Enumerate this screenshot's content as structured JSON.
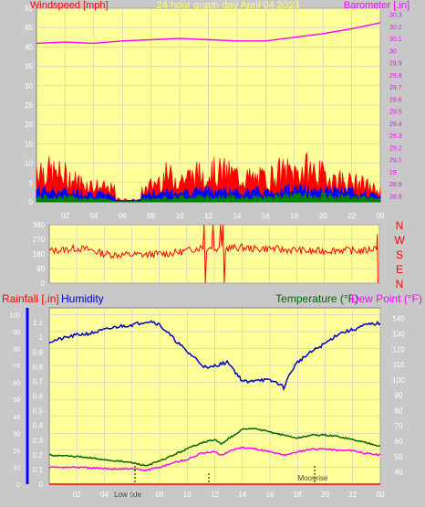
{
  "header": {
    "left_label": "Windspeed [mph]",
    "center_label": "24 hour graph day  April 04 2023",
    "right_label": "Barometer [.in]"
  },
  "bottom_header": {
    "rainfall_label": "Rainfall [.in]",
    "humidity_label": "Humidity",
    "temperature_label": "Temperature (°F)",
    "dewpoint_label": "Dew Point (°F)"
  },
  "footer_labels": [
    "Low tide",
    "Moonrise"
  ],
  "colors": {
    "background": "#c8c8c8",
    "plot_bg": "#ffff99",
    "wind": "#ff0000",
    "gust": "#0000ff",
    "avg_wind": "#008000",
    "barometer": "#ff00ff",
    "humidity": "#0000cc",
    "temperature": "#006600",
    "dewpoint": "#ff00ff",
    "rain": "#ff0000"
  },
  "chart_data": [
    {
      "type": "line",
      "name": "wind_and_barometer",
      "title": "24 hour graph day  April 04 2023",
      "xlabel": "",
      "x_ticks": [
        "02",
        "04",
        "06",
        "08",
        "10",
        "12",
        "14",
        "16",
        "18",
        "20",
        "22",
        "00"
      ],
      "y_left": {
        "label": "Windspeed [mph]",
        "ticks": [
          0,
          5,
          10,
          15,
          20,
          25,
          30,
          35,
          40,
          45,
          50
        ],
        "lim": [
          0,
          50
        ]
      },
      "y_right": {
        "label": "Barometer [.in]",
        "ticks": [
          28.8,
          28.9,
          29,
          29.1,
          29.2,
          29.3,
          29.4,
          29.5,
          29.6,
          29.7,
          29.8,
          29.9,
          30,
          30.1,
          30.2,
          30.3
        ],
        "lim": [
          28.75,
          30.35
        ]
      },
      "series": [
        {
          "name": "Barometer [.in]",
          "axis": "right",
          "color": "#ff00ff",
          "x": [
            0,
            2,
            4,
            6,
            8,
            10,
            12,
            14,
            16,
            18,
            20,
            22,
            24
          ],
          "y": [
            30.06,
            30.07,
            30.06,
            30.08,
            30.09,
            30.1,
            30.09,
            30.08,
            30.08,
            30.11,
            30.14,
            30.18,
            30.23
          ]
        },
        {
          "name": "gust",
          "axis": "left",
          "color": "#ff0000",
          "x": [
            0,
            1,
            2,
            3,
            4,
            5,
            6,
            7,
            8,
            9,
            10,
            11,
            12,
            13,
            14,
            15,
            16,
            17,
            18,
            19,
            20,
            21,
            22,
            23,
            24
          ],
          "y": [
            11,
            9,
            8,
            6,
            5,
            4,
            3,
            2,
            5,
            8,
            7,
            8,
            9,
            9,
            8,
            7,
            7,
            9,
            9,
            10,
            8,
            7,
            6,
            5,
            3
          ]
        },
        {
          "name": "wind",
          "axis": "left",
          "color": "#0000ff",
          "x": [
            0,
            2,
            4,
            6,
            8,
            10,
            12,
            14,
            16,
            18,
            20,
            22,
            24
          ],
          "y": [
            3.5,
            3,
            2.5,
            1.5,
            2.5,
            3,
            3.5,
            3,
            3,
            4,
            3.5,
            3,
            1.5
          ]
        },
        {
          "name": "avg wind",
          "axis": "left",
          "color": "#008000",
          "x": [
            0,
            2,
            4,
            6,
            8,
            10,
            12,
            14,
            16,
            18,
            20,
            22,
            24
          ],
          "y": [
            1.5,
            1.5,
            1,
            0.5,
            1,
            1.5,
            1.5,
            1.5,
            1.5,
            2,
            2,
            1.5,
            1
          ]
        }
      ],
      "grid": true
    },
    {
      "type": "line",
      "name": "wind_direction",
      "x_ticks": [
        "02",
        "04",
        "06",
        "08",
        "10",
        "12",
        "14",
        "16",
        "18",
        "20",
        "22",
        "00"
      ],
      "y_left": {
        "ticks": [
          0,
          90,
          180,
          270,
          360
        ],
        "lim": [
          0,
          360
        ]
      },
      "y_right_labels": [
        "N",
        "W",
        "S",
        "E",
        "N"
      ],
      "series": [
        {
          "name": "direction",
          "color": "#ff0000",
          "x": [
            0,
            1,
            2,
            3,
            4,
            5,
            6,
            7,
            8,
            9,
            10,
            11,
            12,
            13,
            14,
            15,
            16,
            17,
            18,
            19,
            20,
            21,
            22,
            23,
            23.8,
            24
          ],
          "y": [
            200,
            205,
            215,
            205,
            180,
            175,
            175,
            175,
            180,
            185,
            200,
            220,
            210,
            215,
            220,
            210,
            215,
            205,
            205,
            195,
            200,
            205,
            200,
            200,
            220,
            0
          ]
        }
      ],
      "grid": true
    },
    {
      "type": "line",
      "name": "temperature_humidity",
      "x_ticks": [
        "02",
        "04",
        "06",
        "08",
        "10",
        "12",
        "14",
        "16",
        "18",
        "20",
        "22",
        "00"
      ],
      "y_left_rain": {
        "label": "Rainfall [.in]",
        "ticks": [
          0,
          0.1,
          0.2,
          0.3,
          0.4,
          0.5,
          0.6,
          0.7,
          0.8,
          0.9,
          1,
          1.1
        ],
        "lim": [
          0,
          1.2
        ]
      },
      "y_left_humidity": {
        "label": "Humidity",
        "ticks": [
          0,
          10,
          20,
          30,
          40,
          50,
          60,
          70,
          80,
          90,
          100
        ],
        "lim": [
          0,
          104
        ]
      },
      "y_right": {
        "label": "Temperature (°F)",
        "ticks": [
          40,
          50,
          60,
          70,
          80,
          90,
          100,
          110,
          120,
          130,
          140
        ],
        "lim": [
          32,
          147
        ]
      },
      "series": [
        {
          "name": "Humidity",
          "axis": "humidity",
          "color": "#0000cc",
          "x": [
            0,
            1,
            2,
            3,
            4,
            5,
            6,
            7,
            7.5,
            8,
            9,
            10,
            10.5,
            11,
            11.5,
            12,
            12.5,
            13,
            13.5,
            14,
            14.5,
            15,
            16,
            16.5,
            17,
            17.5,
            18,
            19,
            20,
            21,
            22,
            23,
            24
          ],
          "y": [
            84,
            86,
            88,
            89,
            91,
            93,
            94,
            96,
            96,
            94,
            86,
            78,
            75,
            71,
            68,
            70,
            71,
            72,
            66,
            61,
            60,
            62,
            61,
            60,
            57,
            66,
            72,
            78,
            83,
            89,
            91,
            94,
            95
          ]
        },
        {
          "name": "Temperature (°F)",
          "axis": "right",
          "color": "#006600",
          "x": [
            0,
            2,
            4,
            6,
            7,
            8,
            9,
            10,
            11,
            12,
            12.5,
            13,
            13.5,
            14,
            15,
            16,
            17,
            18,
            19,
            20,
            21,
            22,
            23,
            24
          ],
          "y": [
            51,
            50,
            48,
            46,
            44,
            47,
            51,
            55,
            59,
            61,
            58,
            62,
            64,
            68,
            68,
            66,
            64,
            62,
            64,
            64,
            63,
            61,
            59,
            57
          ]
        },
        {
          "name": "Dew Point (°F)",
          "axis": "right",
          "color": "#ff00ff",
          "x": [
            0,
            2,
            4,
            6,
            7,
            8,
            9,
            10,
            11,
            12,
            12.5,
            13,
            13.5,
            14,
            15,
            16,
            17,
            18,
            19,
            20,
            21,
            22,
            23,
            24
          ],
          "y": [
            43,
            43,
            42,
            42,
            41,
            43,
            46,
            48,
            52,
            53,
            51,
            53,
            55,
            56,
            55,
            53,
            51,
            53,
            55,
            55,
            54,
            54,
            52,
            51
          ]
        },
        {
          "name": "Rainfall [.in]",
          "axis": "rain",
          "color": "#ff0000",
          "x": [
            0,
            24
          ],
          "y": [
            0,
            0
          ]
        }
      ],
      "grid": true
    }
  ]
}
